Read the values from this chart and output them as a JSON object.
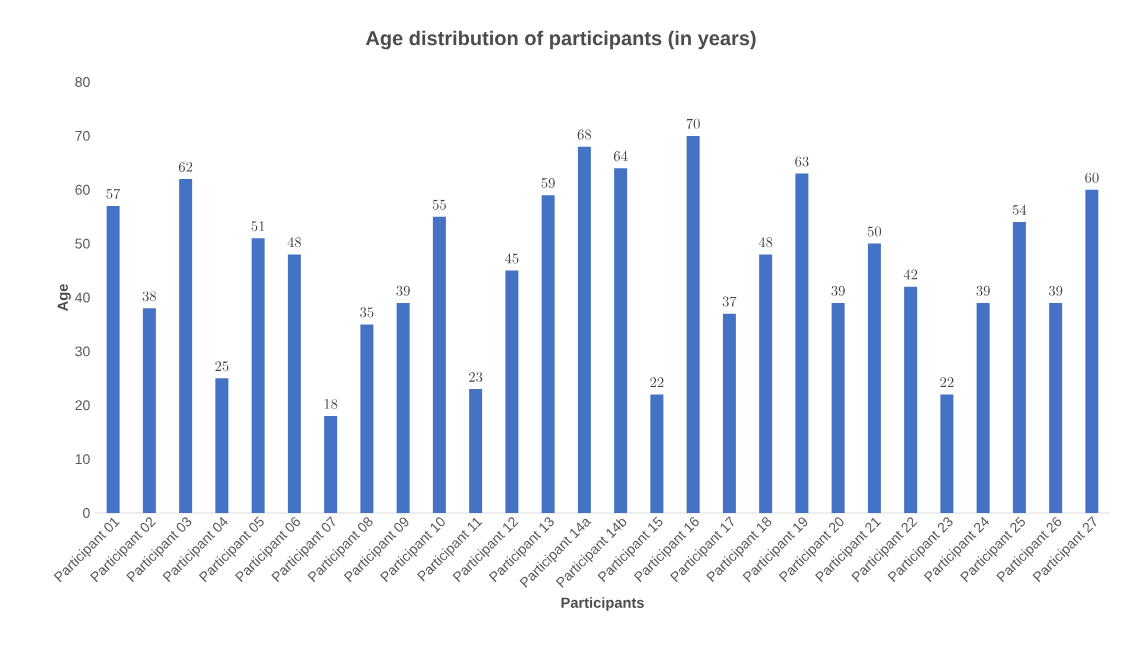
{
  "chart_data": {
    "type": "bar",
    "title": "Age distribution of participants (in years)",
    "xlabel": "Participants",
    "ylabel": "Age",
    "categories": [
      "Participant 01",
      "Participant 02",
      "Participant 03",
      "Participant 04",
      "Participant 05",
      "Participant 06",
      "Participant 07",
      "Participant 08",
      "Participant 09",
      "Participant 10",
      "Participant 11",
      "Participant 12",
      "Participant 13",
      "Participant 14a",
      "Participant 14b",
      "Participant 15",
      "Participant 16",
      "Participant 17",
      "Participant 18",
      "Participant 19",
      "Participant 20",
      "Participant 21",
      "Participant 22",
      "Participant 23",
      "Participant 24",
      "Participant 25",
      "Participant 26",
      "Participant 27"
    ],
    "values": [
      57,
      38,
      62,
      25,
      51,
      48,
      18,
      35,
      39,
      55,
      23,
      45,
      59,
      68,
      64,
      22,
      70,
      37,
      48,
      63,
      39,
      50,
      42,
      22,
      39,
      54,
      39,
      60
    ],
    "color": "#4472c4",
    "ylim": [
      0,
      80
    ],
    "yticks": [
      0,
      10,
      20,
      30,
      40,
      50,
      60,
      70,
      80
    ],
    "data_labels": true
  }
}
